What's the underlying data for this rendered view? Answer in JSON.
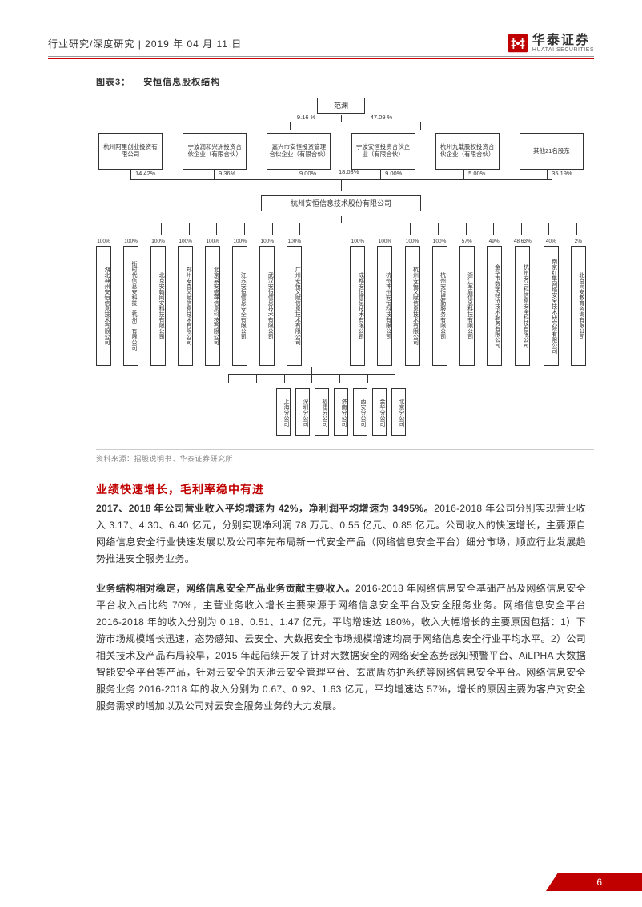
{
  "header": {
    "breadcrumb": "行业研究/深度研究",
    "date": "2019 年 04 月 11 日",
    "logo_cn": "华泰证券",
    "logo_en": "HUATAI SECURITIES"
  },
  "figure": {
    "label": "图表3：",
    "title": "安恒信息股权结构",
    "source": "资料来源：招股说明书、华泰证券研究所",
    "top_person": "范渊",
    "top_left_pct": "9.16 %",
    "top_right_pct": "47.09 %",
    "company": "杭州安恒信息技术股份有限公司",
    "shareholders": [
      {
        "name": "杭州阿里创业投资有限公司",
        "pct_below": "14.42%"
      },
      {
        "name": "宁波润和兴洲投资合伙企业（有限合伙）",
        "pct_below": "9.36%"
      },
      {
        "name": "嘉兴市安恒投资管理合伙企业（有限合伙）",
        "pct_below": "9.00%",
        "pct_side": "18.03%"
      },
      {
        "name": "宁波安恒投资合伙企业（有限合伙）",
        "pct_below": "9.00%"
      },
      {
        "name": "杭州九载股权投资合伙企业（有限合伙）",
        "pct_below": "5.00%"
      },
      {
        "name": "其他21名股东",
        "pct_below": "35.19%"
      }
    ],
    "subsidiaries_left": [
      {
        "name": "湖北神州安恒信息技术有限公司",
        "pct": "100%"
      },
      {
        "name": "衡时代信息安科技（杭州）有限公司",
        "pct": "100%"
      },
      {
        "name": "北京安翰网安科技有限公司",
        "pct": "100%"
      },
      {
        "name": "郑州安森又赋信息技术有限公司",
        "pct": "100%"
      },
      {
        "name": "北京易安盛神信息科技有限公司",
        "pct": "100%"
      },
      {
        "name": "江苏安恒信息安全有限公司",
        "pct": "100%"
      },
      {
        "name": "武汉安恒信息技术有限公司",
        "pct": "100%"
      },
      {
        "name": "广州安恒又赋信息技术有限公司",
        "pct": "100%"
      }
    ],
    "subsidiaries_right": [
      {
        "name": "成都安恒信息技术有限公司",
        "pct": "100%"
      },
      {
        "name": "杭州神州安恒科技有限公司",
        "pct": "100%"
      },
      {
        "name": "杭州安恒又赋信息技术有限公司",
        "pct": "100%"
      },
      {
        "name": "杭州安恒启勤服务有限公司",
        "pct": "100%"
      },
      {
        "name": "浙江军盾信息科技有限公司",
        "pct": "57%"
      },
      {
        "name": "金华市数字经济技术服务有限公司",
        "pct": "49%"
      },
      {
        "name": "杭州安兰科信息安全科技有限公司",
        "pct": "48.63%"
      },
      {
        "name": "南京红隼网络安全技术研究院有限公司",
        "pct": "40%"
      },
      {
        "name": "北京网安教育咨询有限公司",
        "pct": "2%"
      }
    ],
    "branches": [
      "上海分公司",
      "深圳分公司",
      "福建分公司",
      "济南分公司",
      "西安分公司",
      "金华分公司",
      "北京分公司"
    ]
  },
  "section": {
    "title": "业绩快速增长，毛利率稳中有进",
    "p1_bold": "2017、2018 年公司营业收入平均增速为 42%，净利润平均增速为 3495%。",
    "p1_rest": "2016-2018 年公司分别实现营业收入 3.17、4.30、6.40 亿元，分别实现净利润 78 万元、0.55 亿元、0.85 亿元。公司收入的快速增长，主要源自网络信息安全行业快速发展以及公司率先布局新一代安全产品（网络信息安全平台）细分市场，顺应行业发展趋势推进安全服务业务。",
    "p2_bold": "业务结构相对稳定，网络信息安全产品业务贡献主要收入。",
    "p2_rest": "2016-2018 年网络信息安全基础产品及网络信息安全平台收入占比约 70%，主营业务收入增长主要来源于网络信息安全平台及安全服务业务。网络信息安全平台 2016-2018 年的收入分别为 0.18、0.51、1.47 亿元，平均增速达 180%，收入大幅增长的主要原因包括：1）下游市场规模增长迅速，态势感知、云安全、大数据安全市场规模增速均高于网络信息安全行业平均水平。2）公司相关技术及产品布局较早，2015 年起陆续开发了针对大数据安全的网络安全态势感知预警平台、AiLPHA 大数据智能安全平台等产品，针对云安全的天池云安全管理平台、玄武盾防护系统等网络信息安全平台。网络信息安全服务业务 2016-2018 年的收入分别为 0.67、0.92、1.63 亿元，平均增速达 57%，增长的原因主要为客户对安全服务需求的增加以及公司对云安全服务业务的大力发展。"
  },
  "footer": {
    "page": "6"
  }
}
